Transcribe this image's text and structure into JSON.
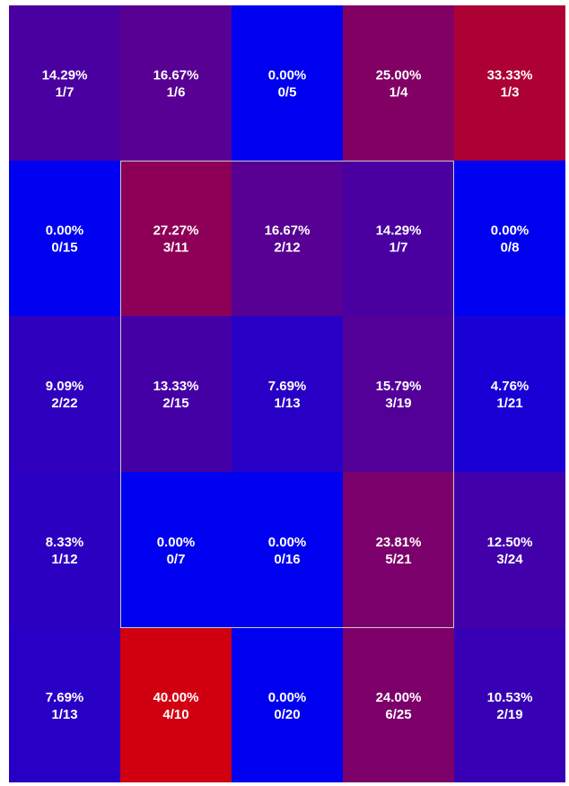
{
  "chart_data": {
    "type": "heatmap",
    "rows": 5,
    "cols": 5,
    "color_scale": {
      "low": "#0000f0",
      "high": "#d00010"
    },
    "value_range": [
      0,
      40
    ],
    "strike_zone": {
      "row_start": 1,
      "row_end": 3,
      "col_start": 1,
      "col_end": 3,
      "border_color": "#c8c8c8"
    },
    "cells": [
      [
        {
          "pct": "14.29%",
          "ratio": "1/7",
          "value": 14.29
        },
        {
          "pct": "16.67%",
          "ratio": "1/6",
          "value": 16.67
        },
        {
          "pct": "0.00%",
          "ratio": "0/5",
          "value": 0
        },
        {
          "pct": "25.00%",
          "ratio": "1/4",
          "value": 25.0
        },
        {
          "pct": "33.33%",
          "ratio": "1/3",
          "value": 33.33
        }
      ],
      [
        {
          "pct": "0.00%",
          "ratio": "0/15",
          "value": 0
        },
        {
          "pct": "27.27%",
          "ratio": "3/11",
          "value": 27.27
        },
        {
          "pct": "16.67%",
          "ratio": "2/12",
          "value": 16.67
        },
        {
          "pct": "14.29%",
          "ratio": "1/7",
          "value": 14.29
        },
        {
          "pct": "0.00%",
          "ratio": "0/8",
          "value": 0
        }
      ],
      [
        {
          "pct": "9.09%",
          "ratio": "2/22",
          "value": 9.09
        },
        {
          "pct": "13.33%",
          "ratio": "2/15",
          "value": 13.33
        },
        {
          "pct": "7.69%",
          "ratio": "1/13",
          "value": 7.69
        },
        {
          "pct": "15.79%",
          "ratio": "3/19",
          "value": 15.79
        },
        {
          "pct": "4.76%",
          "ratio": "1/21",
          "value": 4.76
        }
      ],
      [
        {
          "pct": "8.33%",
          "ratio": "1/12",
          "value": 8.33
        },
        {
          "pct": "0.00%",
          "ratio": "0/7",
          "value": 0
        },
        {
          "pct": "0.00%",
          "ratio": "0/16",
          "value": 0
        },
        {
          "pct": "23.81%",
          "ratio": "5/21",
          "value": 23.81
        },
        {
          "pct": "12.50%",
          "ratio": "3/24",
          "value": 12.5
        }
      ],
      [
        {
          "pct": "7.69%",
          "ratio": "1/13",
          "value": 7.69
        },
        {
          "pct": "40.00%",
          "ratio": "4/10",
          "value": 40.0
        },
        {
          "pct": "0.00%",
          "ratio": "0/20",
          "value": 0
        },
        {
          "pct": "24.00%",
          "ratio": "6/25",
          "value": 24.0
        },
        {
          "pct": "10.53%",
          "ratio": "2/19",
          "value": 10.53
        }
      ]
    ]
  }
}
